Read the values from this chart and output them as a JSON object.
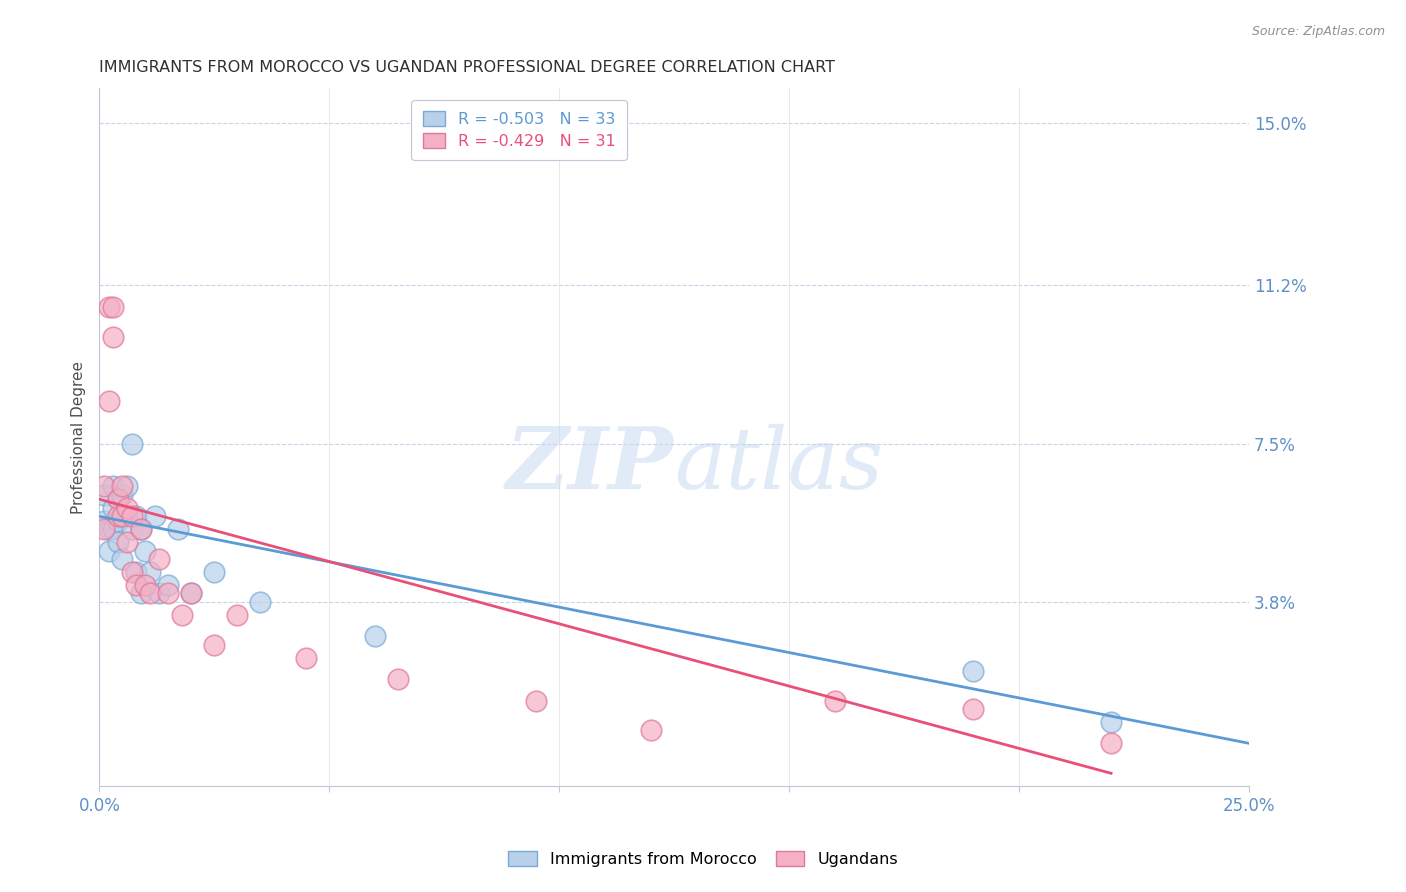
{
  "title": "IMMIGRANTS FROM MOROCCO VS UGANDAN PROFESSIONAL DEGREE CORRELATION CHART",
  "source": "Source: ZipAtlas.com",
  "ylabel": "Professional Degree",
  "right_yticks": [
    0.0,
    0.038,
    0.075,
    0.112,
    0.15
  ],
  "right_yticklabels": [
    "",
    "3.8%",
    "7.5%",
    "11.2%",
    "15.0%"
  ],
  "xmin": 0.0,
  "xmax": 0.25,
  "ymin": -0.005,
  "ymax": 0.158,
  "blue_scatter_x": [
    0.001,
    0.001,
    0.002,
    0.002,
    0.003,
    0.003,
    0.003,
    0.004,
    0.004,
    0.004,
    0.005,
    0.005,
    0.005,
    0.006,
    0.006,
    0.007,
    0.007,
    0.008,
    0.008,
    0.009,
    0.009,
    0.01,
    0.011,
    0.012,
    0.013,
    0.015,
    0.017,
    0.02,
    0.025,
    0.035,
    0.06,
    0.19,
    0.22
  ],
  "blue_scatter_y": [
    0.063,
    0.057,
    0.055,
    0.05,
    0.065,
    0.06,
    0.055,
    0.062,
    0.057,
    0.052,
    0.063,
    0.058,
    0.048,
    0.065,
    0.058,
    0.075,
    0.055,
    0.058,
    0.045,
    0.055,
    0.04,
    0.05,
    0.045,
    0.058,
    0.04,
    0.042,
    0.055,
    0.04,
    0.045,
    0.038,
    0.03,
    0.022,
    0.01
  ],
  "pink_scatter_x": [
    0.001,
    0.001,
    0.002,
    0.002,
    0.003,
    0.003,
    0.004,
    0.004,
    0.005,
    0.005,
    0.006,
    0.006,
    0.007,
    0.007,
    0.008,
    0.009,
    0.01,
    0.011,
    0.013,
    0.015,
    0.018,
    0.02,
    0.025,
    0.03,
    0.045,
    0.065,
    0.095,
    0.12,
    0.16,
    0.19,
    0.22
  ],
  "pink_scatter_y": [
    0.065,
    0.055,
    0.107,
    0.085,
    0.107,
    0.1,
    0.062,
    0.058,
    0.065,
    0.058,
    0.06,
    0.052,
    0.058,
    0.045,
    0.042,
    0.055,
    0.042,
    0.04,
    0.048,
    0.04,
    0.035,
    0.04,
    0.028,
    0.035,
    0.025,
    0.02,
    0.015,
    0.008,
    0.015,
    0.013,
    0.005
  ],
  "blue_line_x0": 0.0,
  "blue_line_y0": 0.058,
  "blue_line_x1": 0.25,
  "blue_line_y1": 0.005,
  "pink_line_x0": 0.0,
  "pink_line_y0": 0.062,
  "pink_line_x1": 0.22,
  "pink_line_y1": -0.002,
  "blue_line_color": "#5b9bd5",
  "pink_line_color": "#e8507a",
  "watermark_zip": "ZIP",
  "watermark_atlas": "atlas",
  "background_color": "#ffffff",
  "grid_color": "#c8d4e8",
  "title_color": "#303030",
  "axis_label_color": "#6090c8",
  "legend_blue_label": "R = -0.503   N = 33",
  "legend_pink_label": "R = -0.429   N = 31",
  "bottom_legend_blue": "Immigrants from Morocco",
  "bottom_legend_pink": "Ugandans"
}
